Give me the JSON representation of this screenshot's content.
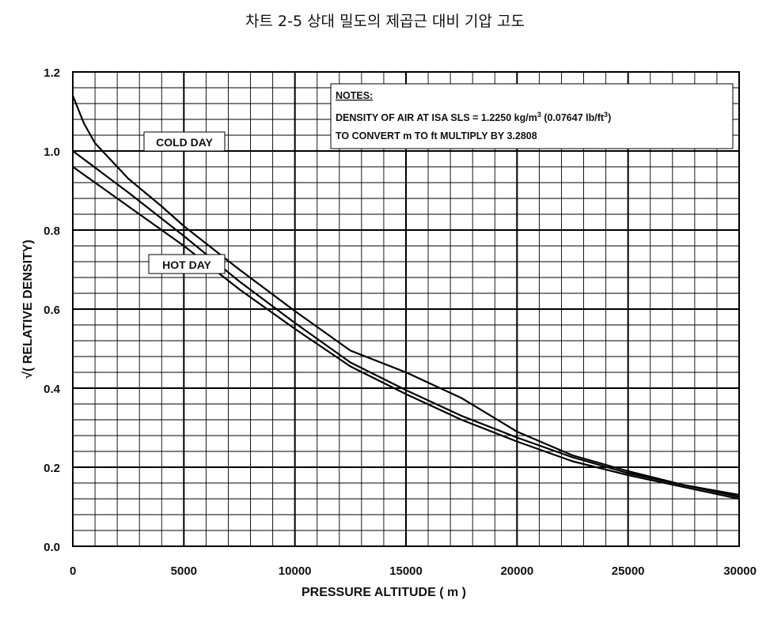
{
  "page": {
    "title": "차트 2-5 상대 밀도의 제곱근 대비 기압 고도"
  },
  "chart_data": {
    "type": "line",
    "title": "차트 2-5 상대 밀도의 제곱근 대비 기압 고도",
    "xlabel": "PRESSURE ALTITUDE ( m )",
    "ylabel": "√( RELATIVE DENSITY)",
    "xlim": [
      0,
      30000
    ],
    "ylim": [
      0.0,
      1.2
    ],
    "x_ticks": [
      "0",
      "5000",
      "10000",
      "15000",
      "20000",
      "25000",
      "30000"
    ],
    "y_ticks": [
      "0.0",
      "0.2",
      "0.4",
      "0.6",
      "0.8",
      "1.0",
      "1.2"
    ],
    "grid": true,
    "series": [
      {
        "name": "COLD DAY",
        "color": "#000000",
        "x": [
          0,
          500,
          1000,
          1500,
          2500,
          4000,
          5000,
          7500,
          10000,
          12500,
          15000,
          17500,
          20000,
          22500,
          25000,
          27500,
          30000
        ],
        "y": [
          1.14,
          1.07,
          1.02,
          0.99,
          0.93,
          0.86,
          0.81,
          0.7,
          0.595,
          0.495,
          0.44,
          0.375,
          0.29,
          0.23,
          0.19,
          0.155,
          0.125
        ]
      },
      {
        "name": "",
        "color": "#000000",
        "x": [
          0,
          2500,
          5000,
          7500,
          10000,
          12500,
          15000,
          17500,
          20000,
          22500,
          25000,
          27500,
          30000
        ],
        "y": [
          1.0,
          0.895,
          0.785,
          0.67,
          0.565,
          0.465,
          0.395,
          0.33,
          0.275,
          0.225,
          0.185,
          0.155,
          0.13
        ]
      },
      {
        "name": "HOT DAY",
        "color": "#000000",
        "x": [
          0,
          2500,
          5000,
          7500,
          10000,
          12500,
          15000,
          17500,
          20000,
          22500,
          25000,
          27500,
          30000
        ],
        "y": [
          0.96,
          0.86,
          0.76,
          0.65,
          0.55,
          0.455,
          0.385,
          0.32,
          0.265,
          0.215,
          0.18,
          0.15,
          0.12
        ]
      }
    ],
    "annotations": [
      {
        "text": "COLD DAY"
      },
      {
        "text": "HOT DAY"
      }
    ],
    "notes": {
      "heading": "NOTES:",
      "line1_main": "DENSITY OF AIR AT ISA SLS = 1.2250 kg/m",
      "line1_sup1": "3",
      "line1_mid": " (0.07647 lb/ft",
      "line1_sup2": "3",
      "line1_end": ")",
      "line2": "TO CONVERT m TO ft MULTIPLY BY 3.2808"
    }
  }
}
